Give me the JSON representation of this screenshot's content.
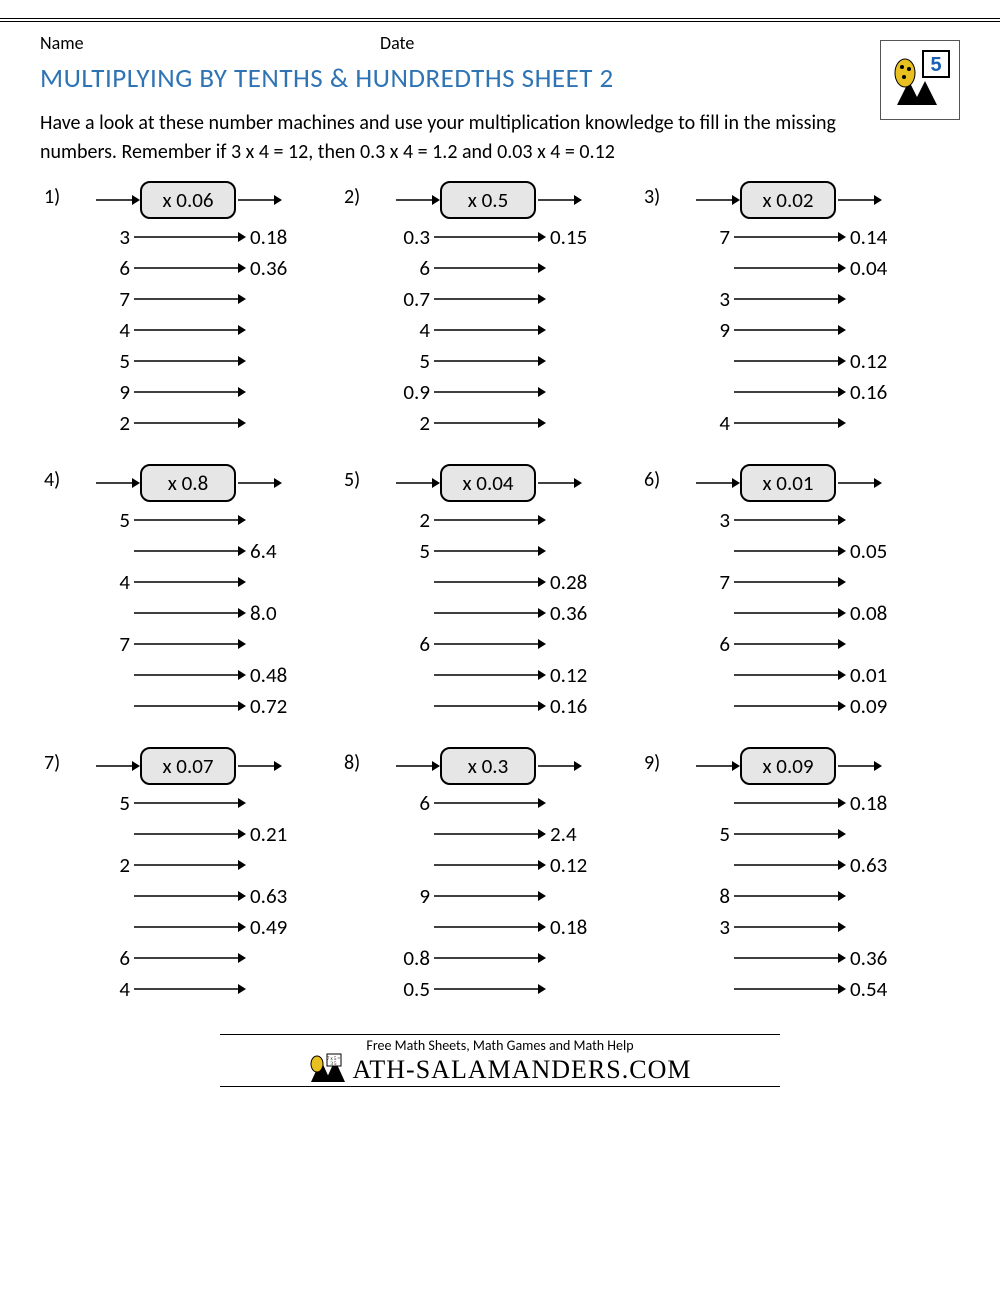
{
  "header": {
    "name_label": "Name",
    "date_label": "Date",
    "grade_badge": "5"
  },
  "title": "MULTIPLYING BY TENTHS & HUNDREDTHS SHEET 2",
  "instructions": "Have a look at these number machines and use your multiplication knowledge to fill in the missing numbers. Remember if 3 x 4 = 12, then 0.3 x 4 = 1.2 and 0.03 x 4 = 0.12",
  "style": {
    "title_color": "#2e74b5",
    "box_fill": "#e6e6e6",
    "box_border": "#000000",
    "arrow_color": "#000000",
    "body_fontsize": 20,
    "title_fontsize": 27
  },
  "machines": [
    {
      "n": "1)",
      "op": "x 0.06",
      "rows": [
        {
          "in": "3",
          "out": "0.18"
        },
        {
          "in": "6",
          "out": "0.36"
        },
        {
          "in": "7",
          "out": ""
        },
        {
          "in": "4",
          "out": ""
        },
        {
          "in": "5",
          "out": ""
        },
        {
          "in": "9",
          "out": ""
        },
        {
          "in": "2",
          "out": ""
        }
      ]
    },
    {
      "n": "2)",
      "op": "x 0.5",
      "rows": [
        {
          "in": "0.3",
          "out": "0.15"
        },
        {
          "in": "6",
          "out": ""
        },
        {
          "in": "0.7",
          "out": ""
        },
        {
          "in": "4",
          "out": ""
        },
        {
          "in": "5",
          "out": ""
        },
        {
          "in": "0.9",
          "out": ""
        },
        {
          "in": "2",
          "out": ""
        }
      ]
    },
    {
      "n": "3)",
      "op": "x 0.02",
      "rows": [
        {
          "in": "7",
          "out": "0.14"
        },
        {
          "in": "",
          "out": "0.04"
        },
        {
          "in": "3",
          "out": ""
        },
        {
          "in": "9",
          "out": ""
        },
        {
          "in": "",
          "out": "0.12"
        },
        {
          "in": "",
          "out": "0.16"
        },
        {
          "in": "4",
          "out": ""
        }
      ]
    },
    {
      "n": "4)",
      "op": "x 0.8",
      "rows": [
        {
          "in": "5",
          "out": ""
        },
        {
          "in": "",
          "out": "6.4"
        },
        {
          "in": "4",
          "out": ""
        },
        {
          "in": "",
          "out": "8.0"
        },
        {
          "in": "7",
          "out": ""
        },
        {
          "in": "",
          "out": "0.48"
        },
        {
          "in": "",
          "out": "0.72"
        }
      ]
    },
    {
      "n": "5)",
      "op": "x 0.04",
      "rows": [
        {
          "in": "2",
          "out": ""
        },
        {
          "in": "5",
          "out": ""
        },
        {
          "in": "",
          "out": "0.28"
        },
        {
          "in": "",
          "out": "0.36"
        },
        {
          "in": "6",
          "out": ""
        },
        {
          "in": "",
          "out": "0.12"
        },
        {
          "in": "",
          "out": "0.16"
        }
      ]
    },
    {
      "n": "6)",
      "op": "x 0.01",
      "rows": [
        {
          "in": "3",
          "out": ""
        },
        {
          "in": "",
          "out": "0.05"
        },
        {
          "in": "7",
          "out": ""
        },
        {
          "in": "",
          "out": "0.08"
        },
        {
          "in": "6",
          "out": ""
        },
        {
          "in": "",
          "out": "0.01"
        },
        {
          "in": "",
          "out": "0.09"
        }
      ]
    },
    {
      "n": "7)",
      "op": "x 0.07",
      "rows": [
        {
          "in": "5",
          "out": ""
        },
        {
          "in": "",
          "out": "0.21"
        },
        {
          "in": "2",
          "out": ""
        },
        {
          "in": "",
          "out": "0.63"
        },
        {
          "in": "",
          "out": "0.49"
        },
        {
          "in": "6",
          "out": ""
        },
        {
          "in": "4",
          "out": ""
        }
      ]
    },
    {
      "n": "8)",
      "op": "x 0.3",
      "rows": [
        {
          "in": "6",
          "out": ""
        },
        {
          "in": "",
          "out": "2.4"
        },
        {
          "in": "",
          "out": "0.12"
        },
        {
          "in": "9",
          "out": ""
        },
        {
          "in": "",
          "out": "0.18"
        },
        {
          "in": "0.8",
          "out": ""
        },
        {
          "in": "0.5",
          "out": ""
        }
      ]
    },
    {
      "n": "9)",
      "op": "x 0.09",
      "rows": [
        {
          "in": "",
          "out": "0.18"
        },
        {
          "in": "5",
          "out": ""
        },
        {
          "in": "",
          "out": "0.63"
        },
        {
          "in": "8",
          "out": ""
        },
        {
          "in": "3",
          "out": ""
        },
        {
          "in": "",
          "out": "0.36"
        },
        {
          "in": "",
          "out": "0.54"
        }
      ]
    }
  ],
  "footer": {
    "line1": "Free Math Sheets, Math Games and Math Help",
    "brand": "ATH-SALAMANDERS.COM"
  }
}
